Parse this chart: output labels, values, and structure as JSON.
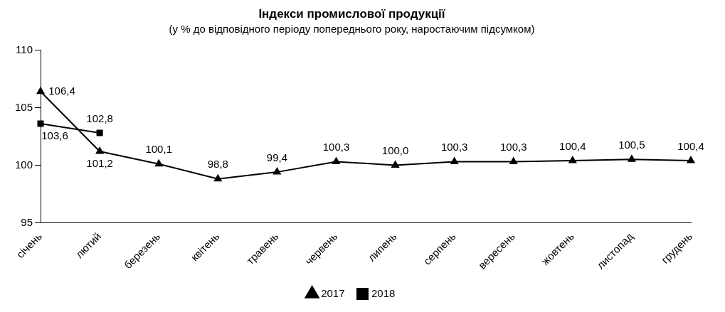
{
  "chart_data": {
    "type": "line",
    "title": "Індекси промислової продукції",
    "subtitle": "(у % до відповідного періоду попереднього року, наростаючим підсумком)",
    "categories": [
      "січень",
      "лютий",
      "березень",
      "квітень",
      "травень",
      "червень",
      "липень",
      "серпень",
      "вересень",
      "жовтень",
      "листопад",
      "грудень"
    ],
    "series": [
      {
        "name": "2017",
        "color": "#000000",
        "marker": "triangle",
        "values": [
          106.4,
          101.2,
          100.1,
          98.8,
          99.4,
          100.3,
          100.0,
          100.3,
          100.3,
          100.4,
          100.5,
          100.4
        ],
        "value_labels": [
          "106,4",
          "101,2",
          "100,1",
          "98,8",
          "99,4",
          "100,3",
          "100,0",
          "100,3",
          "100,3",
          "100,4",
          "100,5",
          "100,4"
        ]
      },
      {
        "name": "2018",
        "color": "#000000",
        "marker": "square",
        "values": [
          103.6,
          102.8,
          null,
          null,
          null,
          null,
          null,
          null,
          null,
          null,
          null,
          null
        ],
        "value_labels": [
          "103,6",
          "102,8",
          null,
          null,
          null,
          null,
          null,
          null,
          null,
          null,
          null,
          null
        ]
      }
    ],
    "ylim": [
      95,
      110
    ],
    "yticks": [
      95,
      100,
      105,
      110
    ],
    "grid": false,
    "legend": "bottom"
  }
}
